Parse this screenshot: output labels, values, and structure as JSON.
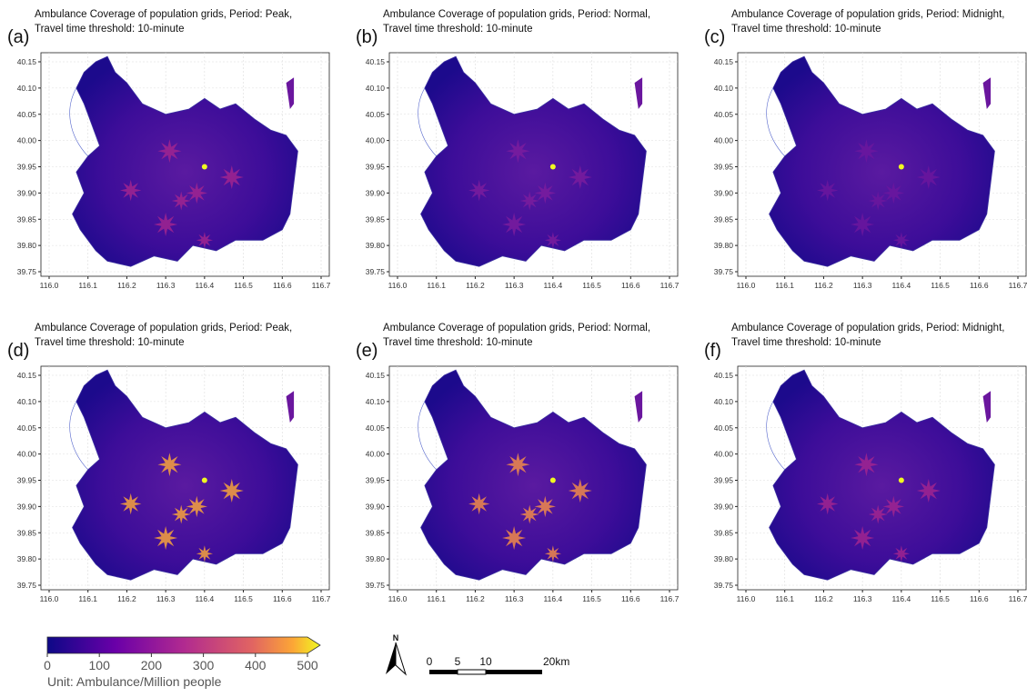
{
  "panels": [
    {
      "label": "(a)",
      "title": "Ambulance Coverage of population grids,  Period: Peak,",
      "subtitle": "Travel time threshold: 10-minute"
    },
    {
      "label": "(b)",
      "title": "Ambulance Coverage of population grids,  Period: Normal,",
      "subtitle": "Travel time threshold: 10-minute"
    },
    {
      "label": "(c)",
      "title": "Ambulance Coverage of population grids,  Period: Midnight,",
      "subtitle": "Travel time threshold: 10-minute"
    },
    {
      "label": "(d)",
      "title": "Ambulance Coverage of population grids,  Period: Peak,",
      "subtitle": "Travel time threshold: 10-minute"
    },
    {
      "label": "(e)",
      "title": "Ambulance Coverage of population grids,  Period: Normal,",
      "subtitle": "Travel time threshold: 10-minute"
    },
    {
      "label": "(f)",
      "title": "Ambulance Coverage of population grids,  Period: Midnight,",
      "subtitle": "Travel time threshold: 10-minute"
    }
  ],
  "x_ticks": [
    "116.0",
    "116.1",
    "116.2",
    "116.3",
    "116.4",
    "116.5",
    "116.6",
    "116.7"
  ],
  "y_ticks": [
    "40.15",
    "40.10",
    "40.05",
    "40.00",
    "39.95",
    "39.90",
    "39.85",
    "39.80",
    "39.75"
  ],
  "colorbar": {
    "ticks": [
      "0",
      "100",
      "200",
      "300",
      "400",
      "500"
    ],
    "unit": "Unit: Ambulance/Million people"
  },
  "scale_bar": {
    "north": "N",
    "labels": [
      "0",
      "5",
      "10",
      "20km"
    ]
  }
}
